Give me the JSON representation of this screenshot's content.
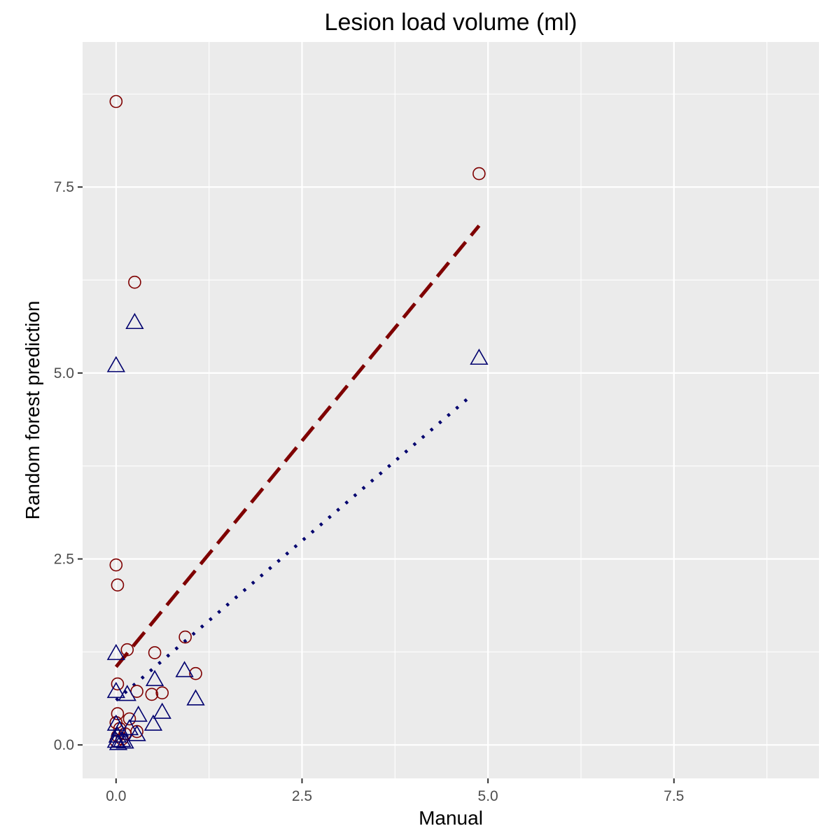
{
  "chart_data": {
    "type": "scatter",
    "title": "Lesion load volume (ml)",
    "xlabel": "Manual",
    "ylabel": "Random forest prediction",
    "xlim": [
      -0.45,
      9.45
    ],
    "ylim": [
      -0.45,
      9.45
    ],
    "x_ticks": [
      0.0,
      2.5,
      5.0,
      7.5
    ],
    "x_tick_labels": [
      "0.0",
      "2.5",
      "5.0",
      "7.5"
    ],
    "y_ticks": [
      0.0,
      2.5,
      5.0,
      7.5
    ],
    "y_tick_labels": [
      "0.0",
      "2.5",
      "5.0",
      "7.5"
    ],
    "grid": true,
    "panel_background": "#ebebeb",
    "series": [
      {
        "marker": "circle",
        "color": "#7f0000",
        "points": [
          [
            0.0,
            8.65
          ],
          [
            4.88,
            7.68
          ],
          [
            0.25,
            6.22
          ],
          [
            0.0,
            2.42
          ],
          [
            0.02,
            2.15
          ],
          [
            0.93,
            1.45
          ],
          [
            0.15,
            1.28
          ],
          [
            0.52,
            1.24
          ],
          [
            1.07,
            0.96
          ],
          [
            0.02,
            0.82
          ],
          [
            0.28,
            0.72
          ],
          [
            0.48,
            0.68
          ],
          [
            0.62,
            0.7
          ],
          [
            0.02,
            0.42
          ],
          [
            0.18,
            0.35
          ],
          [
            0.0,
            0.3
          ],
          [
            0.05,
            0.22
          ],
          [
            0.28,
            0.18
          ],
          [
            0.02,
            0.12
          ],
          [
            0.08,
            0.08
          ],
          [
            0.0,
            0.05
          ],
          [
            0.12,
            0.15
          ]
        ]
      },
      {
        "marker": "triangle",
        "color": "#00006e",
        "points": [
          [
            0.25,
            5.68
          ],
          [
            0.0,
            5.1
          ],
          [
            4.88,
            5.2
          ],
          [
            0.0,
            1.23
          ],
          [
            0.92,
            1.0
          ],
          [
            0.52,
            0.88
          ],
          [
            0.0,
            0.72
          ],
          [
            0.15,
            0.68
          ],
          [
            1.07,
            0.62
          ],
          [
            0.62,
            0.44
          ],
          [
            0.3,
            0.4
          ],
          [
            0.5,
            0.28
          ],
          [
            0.0,
            0.28
          ],
          [
            0.05,
            0.2
          ],
          [
            0.18,
            0.22
          ],
          [
            0.02,
            0.12
          ],
          [
            0.28,
            0.14
          ],
          [
            0.0,
            0.05
          ],
          [
            0.08,
            0.06
          ],
          [
            0.12,
            0.04
          ],
          [
            0.03,
            0.02
          ]
        ]
      }
    ],
    "fit_lines": [
      {
        "style": "dashed",
        "color": "#7f0000",
        "x": [
          0.0,
          4.88
        ],
        "y": [
          1.05,
          6.98
        ]
      },
      {
        "style": "dotted",
        "color": "#00006e",
        "x": [
          0.0,
          4.78
        ],
        "y": [
          0.6,
          4.7
        ]
      }
    ]
  }
}
